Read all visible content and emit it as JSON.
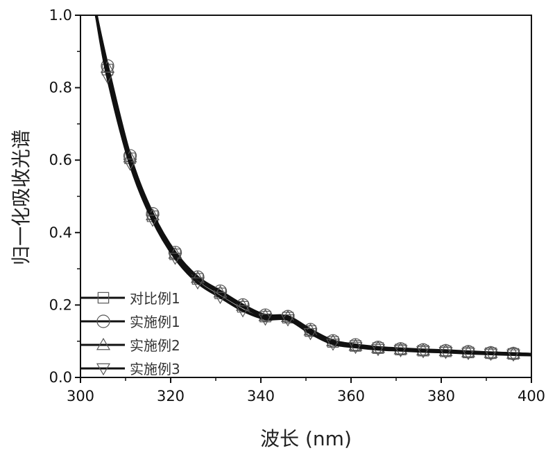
{
  "chart_data": {
    "type": "line",
    "title": "",
    "xlabel": "波长 (nm)",
    "ylabel": "归一化吸收光谱",
    "xlim": [
      300,
      400
    ],
    "ylim": [
      0.0,
      1.0
    ],
    "xticks": [
      300,
      320,
      340,
      360,
      380,
      400
    ],
    "xtick_labels": [
      "300",
      "320",
      "340",
      "360",
      "380",
      "400"
    ],
    "yticks": [
      0.0,
      0.2,
      0.4,
      0.6,
      0.8,
      1.0
    ],
    "ytick_labels": [
      "0.0",
      "0.2",
      "0.4",
      "0.6",
      "0.8",
      "1.0"
    ],
    "grid": false,
    "legend_position": "bottom-left",
    "x": [
      303.5,
      306,
      311,
      316,
      321,
      326,
      331,
      336,
      341,
      346,
      351,
      356,
      361,
      366,
      371,
      376,
      381,
      386,
      391,
      396,
      400
    ],
    "series": [
      {
        "name": "对比例1",
        "marker": "square",
        "values": [
          1.0,
          0.85,
          0.605,
          0.445,
          0.34,
          0.272,
          0.232,
          0.195,
          0.168,
          0.165,
          0.128,
          0.098,
          0.087,
          0.081,
          0.077,
          0.074,
          0.072,
          0.069,
          0.067,
          0.065,
          0.063
        ]
      },
      {
        "name": "实施例1",
        "marker": "circle",
        "values": [
          1.0,
          0.86,
          0.612,
          0.452,
          0.345,
          0.277,
          0.238,
          0.2,
          0.172,
          0.168,
          0.132,
          0.101,
          0.09,
          0.083,
          0.079,
          0.076,
          0.074,
          0.071,
          0.068,
          0.066,
          0.064
        ]
      },
      {
        "name": "实施例2",
        "marker": "triangle-up",
        "values": [
          1.0,
          0.855,
          0.608,
          0.448,
          0.342,
          0.275,
          0.235,
          0.198,
          0.17,
          0.167,
          0.13,
          0.1,
          0.088,
          0.082,
          0.078,
          0.075,
          0.073,
          0.07,
          0.068,
          0.066,
          0.064
        ]
      },
      {
        "name": "实施例3",
        "marker": "triangle-down",
        "values": [
          1.0,
          0.83,
          0.59,
          0.435,
          0.33,
          0.262,
          0.222,
          0.185,
          0.162,
          0.16,
          0.122,
          0.093,
          0.084,
          0.078,
          0.075,
          0.072,
          0.07,
          0.067,
          0.065,
          0.063,
          0.062
        ]
      }
    ]
  }
}
